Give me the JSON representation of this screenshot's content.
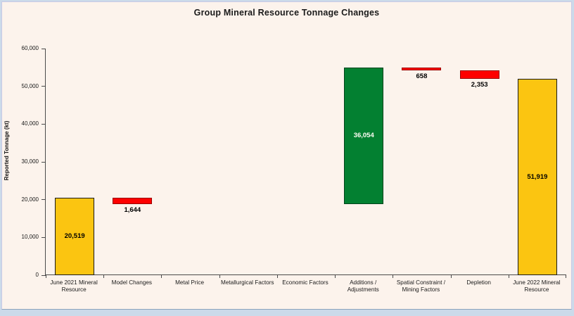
{
  "chart_data": {
    "type": "bar",
    "variant": "waterfall",
    "title": "Group Mineral Resource Tonnage Changes",
    "xlabel": "",
    "ylabel": "Reported Tonnage (kt)",
    "ylim": [
      0,
      60000
    ],
    "ytick_step": 10000,
    "ytick_labels": [
      "0",
      "10,000",
      "20,000",
      "30,000",
      "40,000",
      "50,000",
      "60,000"
    ],
    "grid": false,
    "legend": false,
    "categories": [
      "June 2021 Mineral Resource",
      "Model Changes",
      "Metal Price",
      "Metallurgical Factors",
      "Economic Factors",
      "Additions / Adjustments",
      "Spatial Constraint / Mining Factors",
      "Depletion",
      "June 2022 Mineral Resource"
    ],
    "bars": [
      {
        "category": "June 2021 Mineral Resource",
        "label": "20,519",
        "value": 20519,
        "start": 0,
        "end": 20519,
        "kind": "total",
        "color": "#fbc511",
        "border_color": "#1a1a1a",
        "label_position": "inside",
        "label_color": "#000000"
      },
      {
        "category": "Model Changes",
        "label": "1,644",
        "value": -1644,
        "start": 18875,
        "end": 20519,
        "kind": "decrease",
        "color": "#fe0000",
        "border_color": "#9b0000",
        "label_position": "below",
        "label_color": "#000000"
      },
      {
        "category": "Metal Price",
        "label": "",
        "value": 0,
        "start": null,
        "end": null,
        "kind": "none",
        "color": null,
        "border_color": null,
        "label_position": "none",
        "label_color": null
      },
      {
        "category": "Metallurgical Factors",
        "label": "",
        "value": 0,
        "start": null,
        "end": null,
        "kind": "none",
        "color": null,
        "border_color": null,
        "label_position": "none",
        "label_color": null
      },
      {
        "category": "Economic Factors",
        "label": "",
        "value": 0,
        "start": null,
        "end": null,
        "kind": "none",
        "color": null,
        "border_color": null,
        "label_position": "none",
        "label_color": null
      },
      {
        "category": "Additions / Adjustments",
        "label": "36,054",
        "value": 36054,
        "start": 18875,
        "end": 54929,
        "kind": "increase",
        "color": "#038031",
        "border_color": "#00441a",
        "label_position": "inside",
        "label_color": "#fffdf5"
      },
      {
        "category": "Spatial Constraint / Mining Factors",
        "label": "658",
        "value": -658,
        "start": 54271,
        "end": 54929,
        "kind": "decrease",
        "color": "#fe0000",
        "border_color": "#9b0000",
        "label_position": "below",
        "label_color": "#000000"
      },
      {
        "category": "Depletion",
        "label": "2,353",
        "value": -2353,
        "start": 51918,
        "end": 54271,
        "kind": "decrease",
        "color": "#fe0000",
        "border_color": "#9b0000",
        "label_position": "below",
        "label_color": "#000000"
      },
      {
        "category": "June 2022 Mineral Resource",
        "label": "51,919",
        "value": 51919,
        "start": 0,
        "end": 51919,
        "kind": "total",
        "color": "#fbc511",
        "border_color": "#1a1a1a",
        "label_position": "inside",
        "label_color": "#000000"
      }
    ]
  },
  "colors": {
    "panel_background": "#fcf3ec",
    "page_background": "#cbdaea",
    "panel_border": "#c9cae5",
    "axis": "#4a4a4a",
    "total_bar": "#fbc511",
    "increase_bar": "#038031",
    "decrease_bar": "#fe0000"
  }
}
